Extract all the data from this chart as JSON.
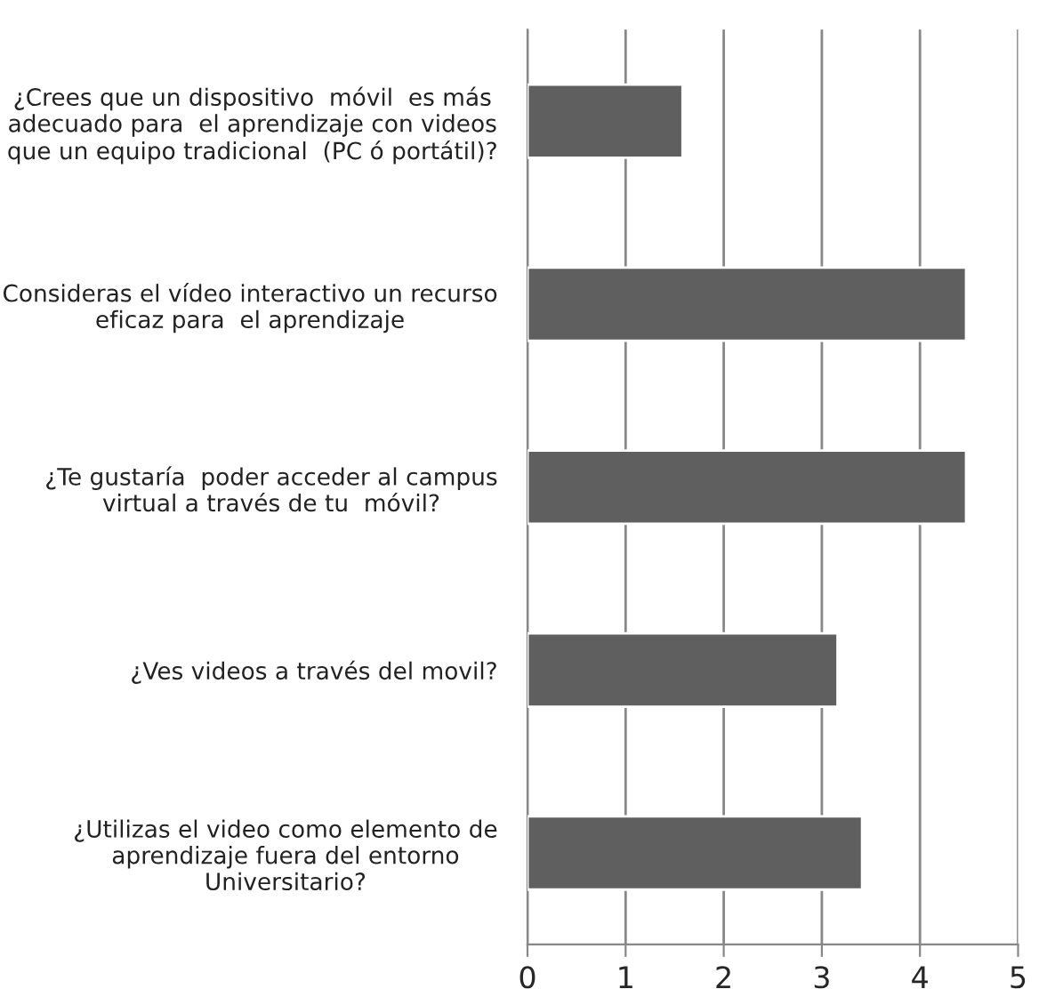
{
  "chart_data": {
    "type": "bar",
    "orientation": "horizontal",
    "categories": [
      "¿Crees que un dispositivo  móvil  es más\nadecuado para  el aprendizaje con videos\nque un equipo tradicional  (PC ó portátil)?",
      "Consideras el vídeo interactivo un recurso\neficaz para  el aprendizaje",
      "¿Te gustaría  poder acceder al campus\nvirtual a través de tu  móvil?",
      "¿Ves videos a través del movil?",
      "¿Utilizas el video como elemento de\naprendizaje fuera del entorno\nUniversitario?"
    ],
    "values": [
      1.58,
      4.47,
      4.47,
      3.16,
      3.41
    ],
    "color": "#5f5f5f",
    "xlim": [
      0,
      5
    ],
    "xticks": [
      0,
      1,
      2,
      3,
      4,
      5
    ],
    "grid": "x"
  }
}
